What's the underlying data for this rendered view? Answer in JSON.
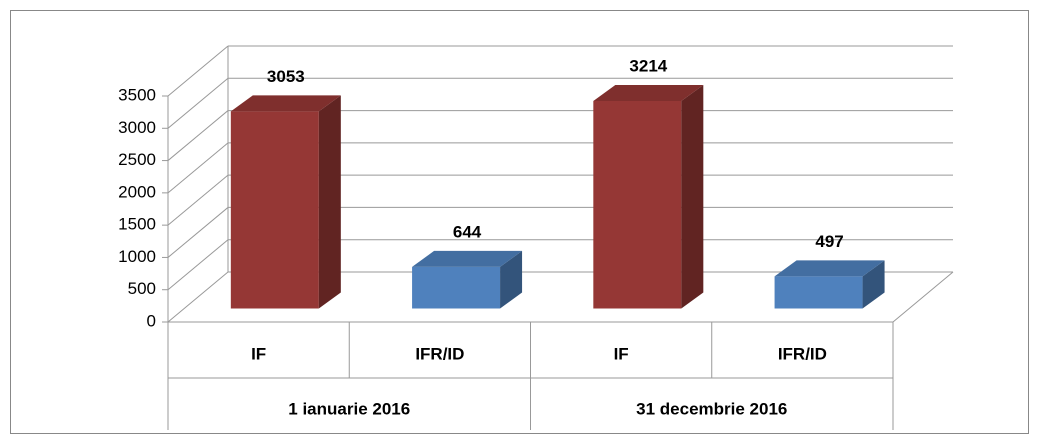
{
  "chart_data": {
    "type": "bar3d",
    "groups": [
      "1 ianuarie 2016",
      "31 decembrie 2016"
    ],
    "categories": [
      "IF",
      "IFR/ID",
      "IF",
      "IFR/ID"
    ],
    "values": [
      3053,
      644,
      3214,
      497
    ],
    "colors": [
      "#953735",
      "#4f81bd",
      "#953735",
      "#4f81bd"
    ],
    "ylim": [
      0,
      3500
    ],
    "yticks": [
      0,
      500,
      1000,
      1500,
      2000,
      2500,
      3000,
      3500
    ],
    "grid": true
  }
}
